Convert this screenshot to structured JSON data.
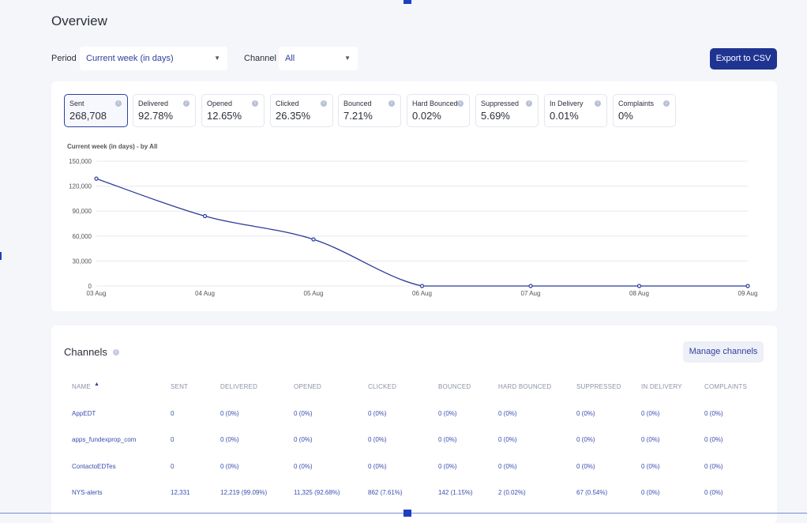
{
  "header": {
    "title": "Overview"
  },
  "filters": {
    "period_label": "Period",
    "period_value": "Current week (in days)",
    "channel_label": "Channel",
    "channel_value": "All",
    "export_label": "Export to CSV"
  },
  "metrics": [
    {
      "label": "Sent",
      "value": "268,708"
    },
    {
      "label": "Delivered",
      "value": "92.78%"
    },
    {
      "label": "Opened",
      "value": "12.65%"
    },
    {
      "label": "Clicked",
      "value": "26.35%"
    },
    {
      "label": "Bounced",
      "value": "7.21%"
    },
    {
      "label": "Hard Bounced",
      "value": "0.02%"
    },
    {
      "label": "Suppressed",
      "value": "5.69%"
    },
    {
      "label": "In Delivery",
      "value": "0.01%"
    },
    {
      "label": "Complaints",
      "value": "0%"
    }
  ],
  "chart_caption": "Current week (in days) - by All",
  "chart_data": {
    "type": "line",
    "title": "Current week (in days) - by All",
    "x": [
      "03 Aug",
      "04 Aug",
      "05 Aug",
      "06 Aug",
      "07 Aug",
      "08 Aug",
      "09 Aug"
    ],
    "y_ticks": [
      "0",
      "30,000",
      "60,000",
      "90,000",
      "120,000",
      "150,000"
    ],
    "ylim": [
      0,
      150000
    ],
    "series": [
      {
        "values": [
          129000,
          84000,
          56000,
          0,
          0,
          0,
          0
        ]
      }
    ],
    "grid": true,
    "color": "#2a3a9a"
  },
  "channels": {
    "title": "Channels",
    "manage_label": "Manage channels",
    "sort_arrow": "▲",
    "columns": [
      "NAME",
      "SENT",
      "DELIVERED",
      "OPENED",
      "CLICKED",
      "BOUNCED",
      "HARD BOUNCED",
      "SUPPRESSED",
      "IN DELIVERY",
      "COMPLAINTS"
    ],
    "rows": [
      [
        "AppEDT",
        "0",
        "0 (0%)",
        "0 (0%)",
        "0 (0%)",
        "0 (0%)",
        "0 (0%)",
        "0 (0%)",
        "0 (0%)",
        "0 (0%)"
      ],
      [
        "apps_fundexprop_com",
        "0",
        "0 (0%)",
        "0 (0%)",
        "0 (0%)",
        "0 (0%)",
        "0 (0%)",
        "0 (0%)",
        "0 (0%)",
        "0 (0%)"
      ],
      [
        "ContactoEDTes",
        "0",
        "0 (0%)",
        "0 (0%)",
        "0 (0%)",
        "0 (0%)",
        "0 (0%)",
        "0 (0%)",
        "0 (0%)",
        "0 (0%)"
      ],
      [
        "NYS-alerts",
        "12,331",
        "12,219 (99.09%)",
        "11,325 (92.68%)",
        "862 (7.61%)",
        "142 (1.15%)",
        "2 (0.02%)",
        "67 (0.54%)",
        "0 (0%)",
        "0 (0%)"
      ]
    ]
  },
  "icons": {
    "info": "info-icon",
    "caret": "chevron-down-icon",
    "sort": "sort-asc-icon"
  }
}
